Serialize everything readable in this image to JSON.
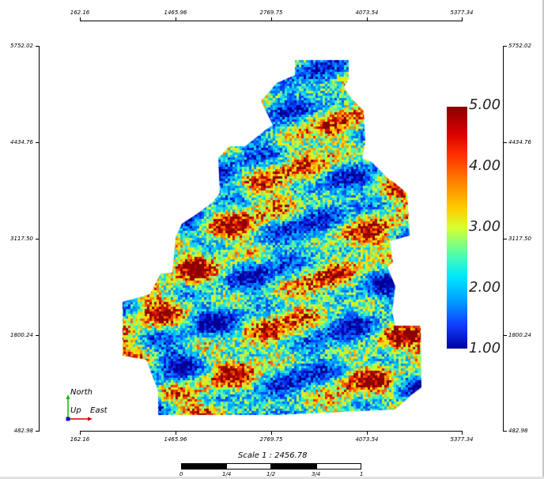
{
  "axes": {
    "x_ticks": [
      "162.16",
      "1465.96",
      "2769.75",
      "4073.54",
      "5377.34"
    ],
    "y_ticks": [
      "5752.02",
      "4434.76",
      "3117.50",
      "1800.24",
      "482.98"
    ]
  },
  "colorbar": {
    "labels": [
      "5.00",
      "4.00",
      "3.00",
      "2.00",
      "1.00"
    ],
    "min": 1.0,
    "max": 5.0
  },
  "compass": {
    "north": "North",
    "up": "Up",
    "east": "East"
  },
  "scale": {
    "title": "Scale 1 : 2456.78",
    "labels": [
      "0",
      "1/4",
      "1/2",
      "3/4",
      "1"
    ]
  },
  "colors": {
    "low": "#0000a0",
    "high": "#8b0000",
    "axis": "#000000",
    "north_arrow": "#00c000",
    "east_arrow": "#d00000",
    "up_marker": "#1010d0"
  }
}
